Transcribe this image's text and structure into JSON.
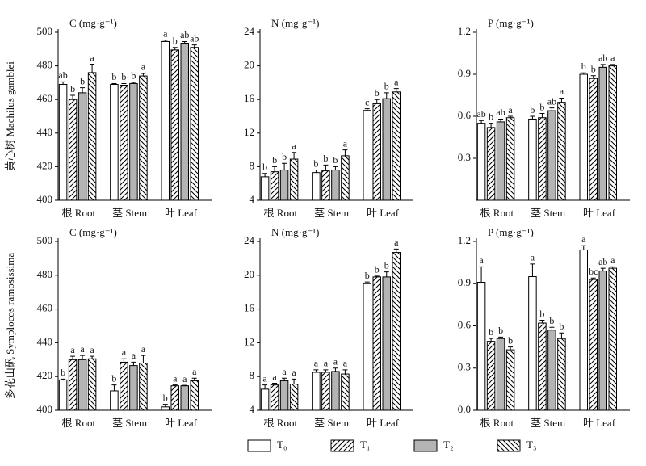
{
  "legend": [
    {
      "name": "T₀",
      "fill": "#ffffff",
      "pattern": "none"
    },
    {
      "name": "T₁",
      "fill": "#ffffff",
      "pattern": "forward"
    },
    {
      "name": "T₂",
      "fill": "#b4b4b4",
      "pattern": "none"
    },
    {
      "name": "T₃",
      "fill": "#ffffff",
      "pattern": "backward"
    }
  ],
  "chart_data": [
    {
      "type": "bar",
      "title": "C (mg·g⁻¹)",
      "ylabel": "黄心树 Machilus gamblei",
      "categories": [
        "根 Root",
        "茎 Stem",
        "叶 Leaf"
      ],
      "ylim": [
        400,
        500
      ],
      "yticks": [
        400,
        420,
        440,
        460,
        480,
        500
      ],
      "series": [
        {
          "values": [
            469,
            469,
            494.5
          ],
          "errors": [
            1.5,
            0.5,
            0.8
          ],
          "labels": [
            "ab",
            "b",
            "a"
          ]
        },
        {
          "values": [
            460,
            468.5,
            489.5
          ],
          "errors": [
            2.5,
            1,
            1.5
          ],
          "labels": [
            "b",
            "b",
            "b"
          ]
        },
        {
          "values": [
            464,
            469.5,
            493.5
          ],
          "errors": [
            3,
            0.7,
            1
          ],
          "labels": [
            "b",
            "b",
            "ab"
          ]
        },
        {
          "values": [
            476,
            474,
            491
          ],
          "errors": [
            5,
            1.5,
            1.5
          ],
          "labels": [
            "a",
            "a",
            "ab"
          ]
        }
      ]
    },
    {
      "type": "bar",
      "title": "N (mg·g⁻¹)",
      "categories": [
        "根 Root",
        "茎 Stem",
        "叶 Leaf"
      ],
      "ylim": [
        4,
        24
      ],
      "yticks": [
        4,
        8,
        12,
        16,
        20,
        24
      ],
      "series": [
        {
          "values": [
            6.8,
            7.3,
            14.7
          ],
          "errors": [
            0.4,
            0.3,
            0.2
          ],
          "labels": [
            "b",
            "b",
            "c"
          ]
        },
        {
          "values": [
            7.4,
            7.5,
            15.5
          ],
          "errors": [
            0.6,
            0.7,
            0.5
          ],
          "labels": [
            "b",
            "b",
            "b"
          ]
        },
        {
          "values": [
            7.6,
            7.6,
            16.1
          ],
          "errors": [
            0.8,
            0.4,
            0.7
          ],
          "labels": [
            "b",
            "b",
            "b"
          ]
        },
        {
          "values": [
            8.9,
            9.3,
            16.9
          ],
          "errors": [
            0.8,
            0.7,
            0.4
          ],
          "labels": [
            "a",
            "a",
            "a"
          ]
        }
      ]
    },
    {
      "type": "bar",
      "title": "P (mg·g⁻¹)",
      "categories": [
        "根 Root",
        "茎 Stem",
        "叶 Leaf"
      ],
      "ylim": [
        0,
        1.2
      ],
      "yticks": [
        0.3,
        0.6,
        0.9,
        1.2
      ],
      "series": [
        {
          "values": [
            0.55,
            0.58,
            0.9
          ],
          "errors": [
            0.02,
            0.02,
            0.01
          ],
          "labels": [
            "ab",
            "b",
            "b"
          ]
        },
        {
          "values": [
            0.52,
            0.59,
            0.87
          ],
          "errors": [
            0.03,
            0.03,
            0.02
          ],
          "labels": [
            "b",
            "b",
            "b"
          ]
        },
        {
          "values": [
            0.56,
            0.64,
            0.95
          ],
          "errors": [
            0.02,
            0.02,
            0.02
          ],
          "labels": [
            "ab",
            "ab",
            "ab"
          ]
        },
        {
          "values": [
            0.59,
            0.7,
            0.96
          ],
          "errors": [
            0.01,
            0.03,
            0.01
          ],
          "labels": [
            "a",
            "a",
            "a"
          ]
        }
      ]
    },
    {
      "type": "bar",
      "title": "C (mg·g⁻¹)",
      "ylabel": "多花山矾 Symplocos ramosissima",
      "categories": [
        "根 Root",
        "茎 Stem",
        "叶 Leaf"
      ],
      "ylim": [
        400,
        500
      ],
      "yticks": [
        400,
        420,
        440,
        460,
        480,
        500
      ],
      "series": [
        {
          "values": [
            418,
            411.5,
            402
          ],
          "errors": [
            0.5,
            3.5,
            1.5
          ],
          "labels": [
            "b",
            "b",
            "b"
          ]
        },
        {
          "values": [
            430,
            428.5,
            414.5
          ],
          "errors": [
            2,
            2,
            0.5
          ],
          "labels": [
            "a",
            "a",
            "a"
          ]
        },
        {
          "values": [
            430,
            426.5,
            414.5
          ],
          "errors": [
            2.5,
            2,
            0.3
          ],
          "labels": [
            "a",
            "a",
            "a"
          ]
        },
        {
          "values": [
            430.5,
            428,
            417.5
          ],
          "errors": [
            1.5,
            4.5,
            1.5
          ],
          "labels": [
            "a",
            "a",
            "a"
          ]
        }
      ]
    },
    {
      "type": "bar",
      "title": "N (mg·g⁻¹)",
      "categories": [
        "根 Root",
        "茎 Stem",
        "叶 Leaf"
      ],
      "ylim": [
        4,
        24
      ],
      "yticks": [
        4,
        8,
        12,
        16,
        20,
        24
      ],
      "series": [
        {
          "values": [
            6.5,
            8.5,
            19.0
          ],
          "errors": [
            0.5,
            0.3,
            0.2
          ],
          "labels": [
            "a",
            "a",
            "b"
          ]
        },
        {
          "values": [
            7.0,
            8.5,
            19.8
          ],
          "errors": [
            0.2,
            0.3,
            0.1
          ],
          "labels": [
            "a",
            "a",
            "b"
          ]
        },
        {
          "values": [
            7.5,
            8.6,
            19.8
          ],
          "errors": [
            0.3,
            0.4,
            0.6
          ],
          "labels": [
            "a",
            "a",
            "b"
          ]
        },
        {
          "values": [
            7.1,
            8.3,
            22.7
          ],
          "errors": [
            0.6,
            0.5,
            0.4
          ],
          "labels": [
            "a",
            "a",
            "a"
          ]
        }
      ]
    },
    {
      "type": "bar",
      "title": "P (mg·g⁻¹)",
      "categories": [
        "根 Root",
        "茎 Stem",
        "叶 Leaf"
      ],
      "ylim": [
        0,
        1.2
      ],
      "yticks": [
        {
          "value": 0,
          "label": "0.0"
        },
        0.3,
        0.6,
        0.9,
        1.2
      ],
      "series": [
        {
          "values": [
            0.91,
            0.95,
            1.14
          ],
          "errors": [
            0.11,
            0.09,
            0.03
          ],
          "labels": [
            "a",
            "a",
            "a"
          ]
        },
        {
          "values": [
            0.49,
            0.62,
            0.93
          ],
          "errors": [
            0.02,
            0.02,
            0.01
          ],
          "labels": [
            "b",
            "b",
            "bc"
          ]
        },
        {
          "values": [
            0.51,
            0.57,
            0.99
          ],
          "errors": [
            0.01,
            0.02,
            0.02
          ],
          "labels": [
            "b",
            "b",
            "ab"
          ]
        },
        {
          "values": [
            0.43,
            0.51,
            1.01
          ],
          "errors": [
            0.02,
            0.04,
            0.01
          ],
          "labels": [
            "b",
            "b",
            "a"
          ]
        }
      ]
    }
  ]
}
